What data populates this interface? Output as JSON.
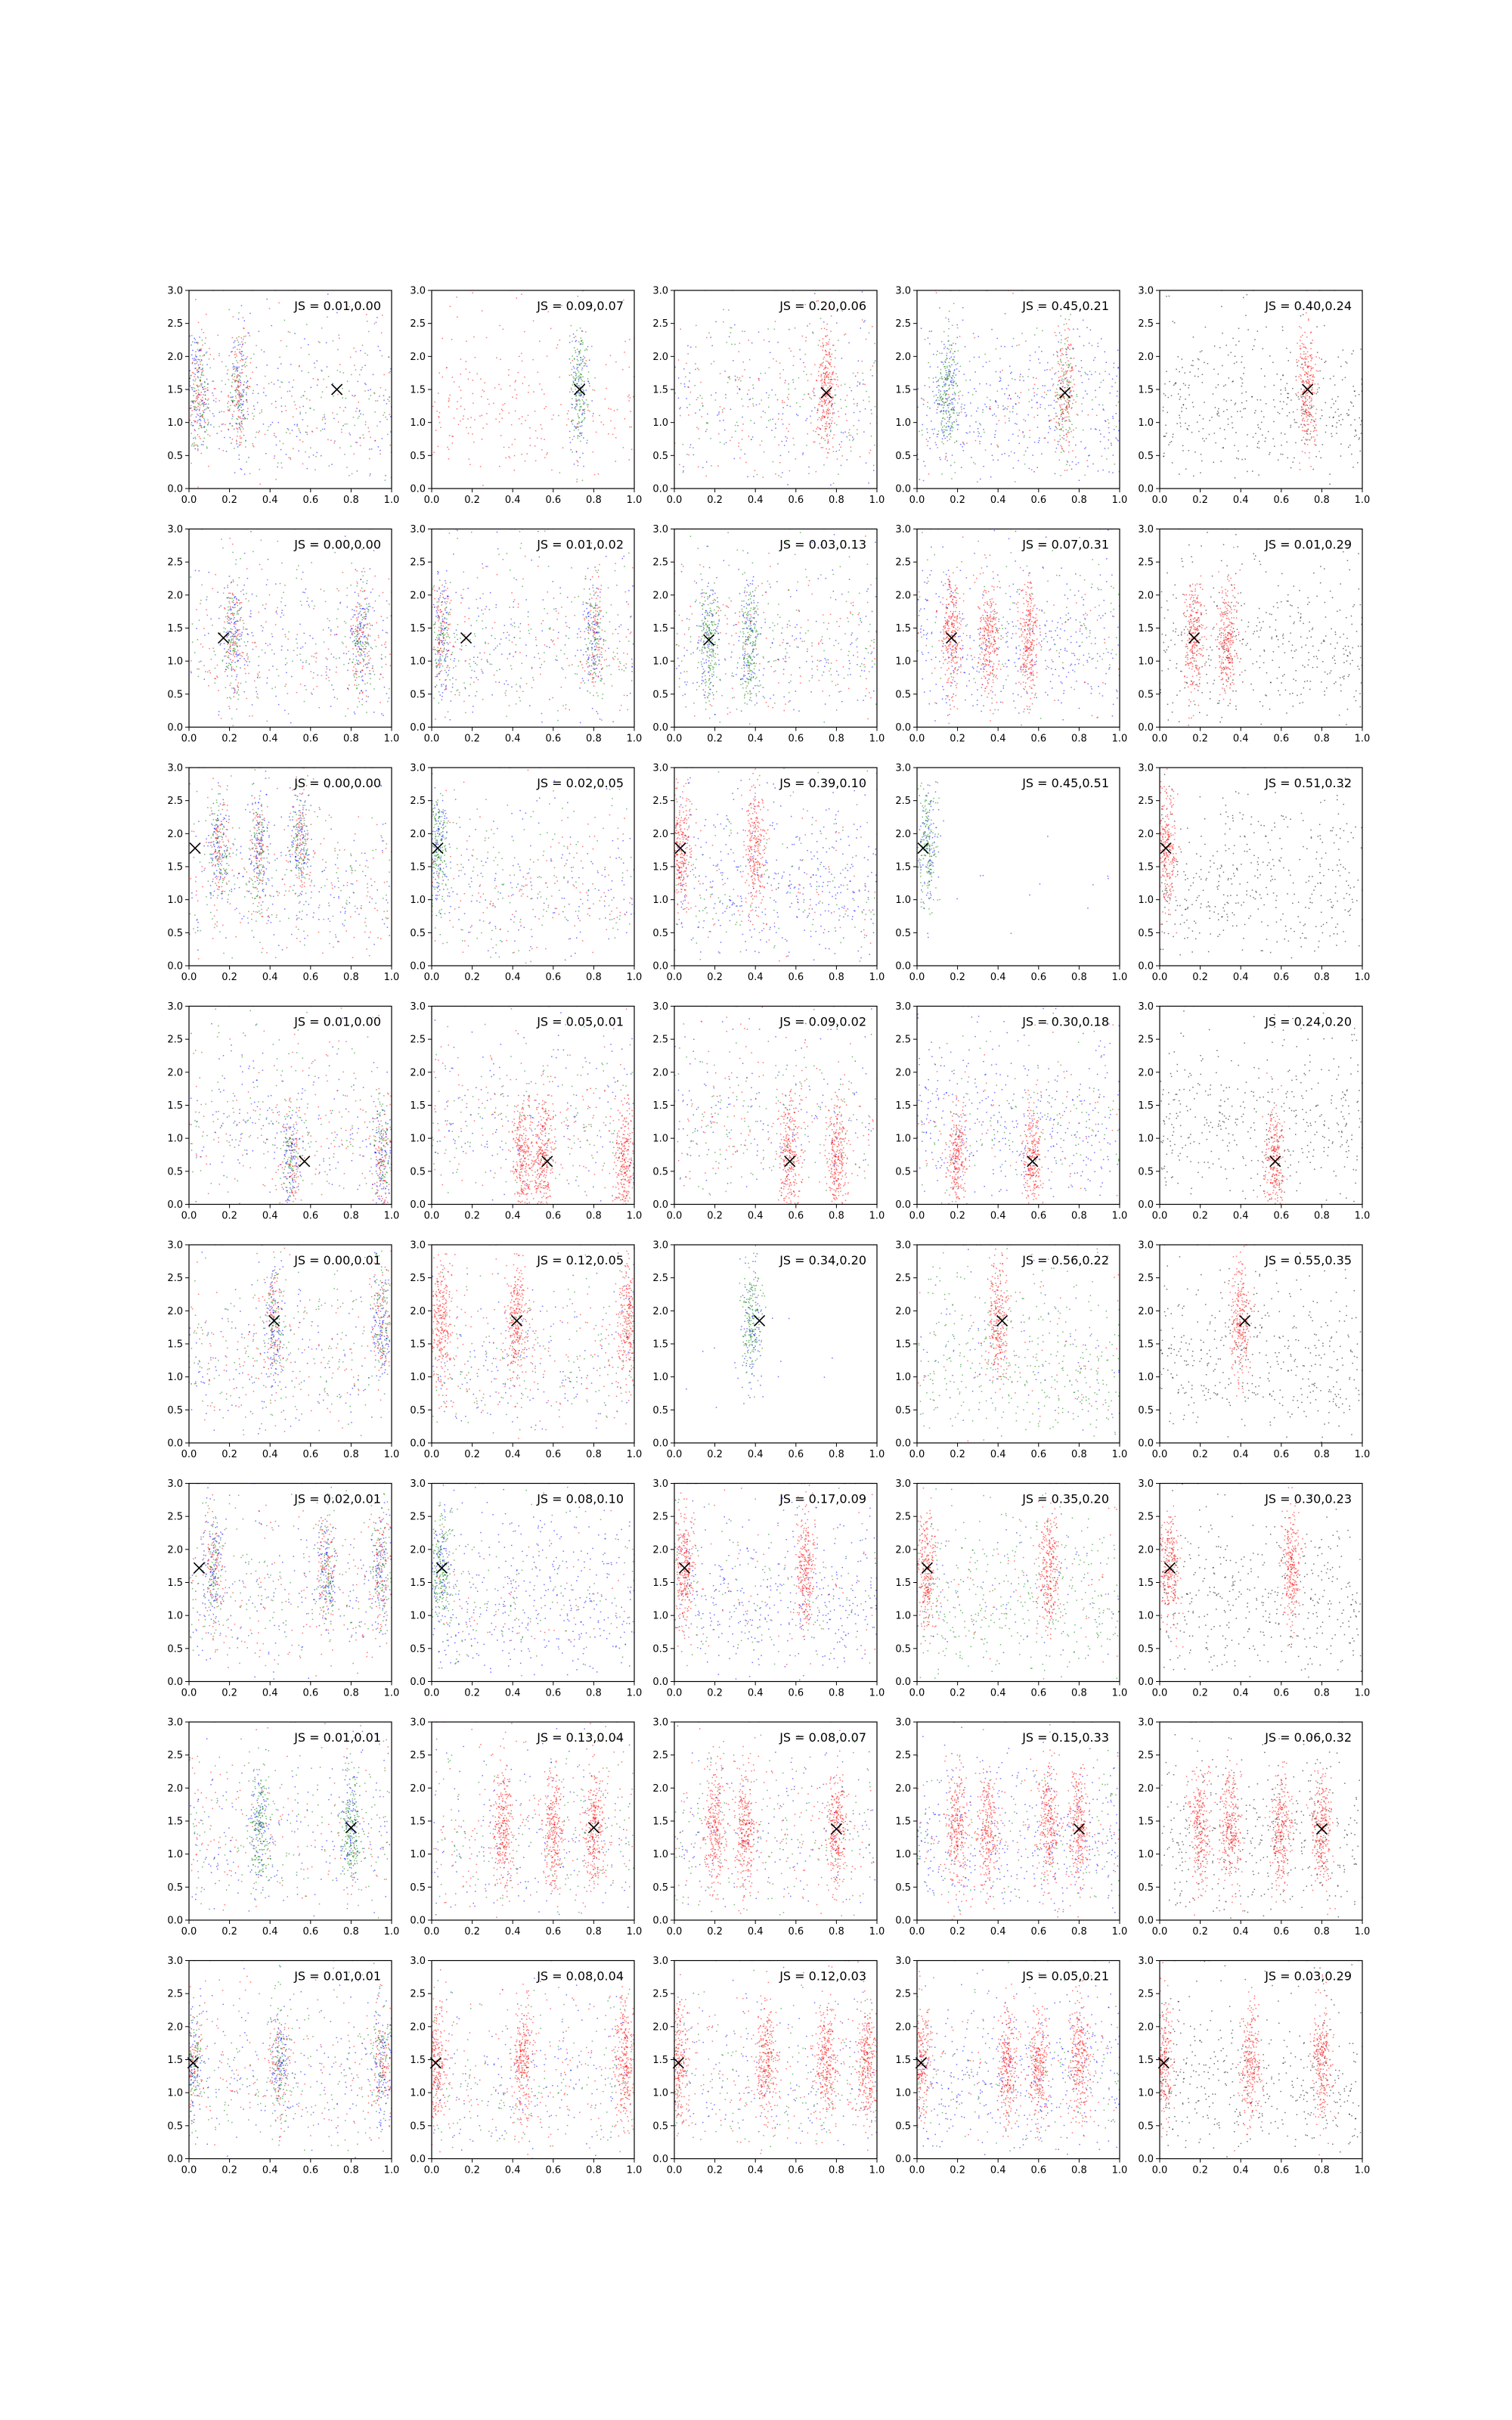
{
  "figure": {
    "rows": 8,
    "cols": 5,
    "point_colors": [
      "#0000ff",
      "#008000",
      "#ff0000",
      "#000000"
    ],
    "marker_color": "#000000",
    "marker_symbol": "x"
  },
  "chart_data": {
    "type": "scatter",
    "shared_axes": {
      "xlim": [
        0.0,
        1.0
      ],
      "ylim": [
        0.0,
        3.0
      ],
      "xticks": [
        "0.0",
        "0.2",
        "0.4",
        "0.6",
        "0.8",
        "1.0"
      ],
      "yticks": [
        "0.0",
        "0.5",
        "1.0",
        "1.5",
        "2.0",
        "2.5",
        "3.0"
      ],
      "grid": false
    },
    "panels": [
      {
        "row": 0,
        "col": 0,
        "label": "JS = 0.01,0.00",
        "marker": [
          0.73,
          1.5
        ],
        "clusters": [
          0.05,
          0.25
        ],
        "dominant": "mix",
        "bg": "mix"
      },
      {
        "row": 0,
        "col": 1,
        "label": "JS = 0.09,0.07",
        "marker": [
          0.73,
          1.5
        ],
        "clusters": [
          0.73
        ],
        "dominant": "green",
        "bg": "red"
      },
      {
        "row": 0,
        "col": 2,
        "label": "JS = 0.20,0.06",
        "marker": [
          0.75,
          1.45
        ],
        "clusters": [
          0.75
        ],
        "dominant": "red",
        "bg": "mix"
      },
      {
        "row": 0,
        "col": 3,
        "label": "JS = 0.45,0.21",
        "marker": [
          0.73,
          1.45
        ],
        "clusters": [
          0.15,
          0.73
        ],
        "dominant": "red+green",
        "bg": "blue"
      },
      {
        "row": 0,
        "col": 4,
        "label": "JS = 0.40,0.24",
        "marker": [
          0.73,
          1.5
        ],
        "clusters": [
          0.73
        ],
        "dominant": "red",
        "bg": "black"
      },
      {
        "row": 1,
        "col": 0,
        "label": "JS = 0.00,0.00",
        "marker": [
          0.17,
          1.35
        ],
        "clusters": [
          0.22,
          0.85
        ],
        "dominant": "mix",
        "bg": "mix"
      },
      {
        "row": 1,
        "col": 1,
        "label": "JS = 0.01,0.02",
        "marker": [
          0.17,
          1.35
        ],
        "clusters": [
          0.05,
          0.8
        ],
        "dominant": "mix",
        "bg": "mix"
      },
      {
        "row": 1,
        "col": 2,
        "label": "JS = 0.03,0.13",
        "marker": [
          0.17,
          1.32
        ],
        "clusters": [
          0.17,
          0.37
        ],
        "dominant": "green",
        "bg": "mix"
      },
      {
        "row": 1,
        "col": 3,
        "label": "JS = 0.07,0.31",
        "marker": [
          0.17,
          1.35
        ],
        "clusters": [
          0.17,
          0.35,
          0.55
        ],
        "dominant": "red",
        "bg": "blue"
      },
      {
        "row": 1,
        "col": 4,
        "label": "JS = 0.01,0.29",
        "marker": [
          0.17,
          1.35
        ],
        "clusters": [
          0.17,
          0.33
        ],
        "dominant": "red",
        "bg": "black"
      },
      {
        "row": 2,
        "col": 0,
        "label": "JS = 0.00,0.00",
        "marker": [
          0.03,
          1.78
        ],
        "clusters": [
          0.15,
          0.35,
          0.55
        ],
        "dominant": "mix",
        "bg": "mix"
      },
      {
        "row": 2,
        "col": 1,
        "label": "JS = 0.02,0.05",
        "marker": [
          0.03,
          1.78
        ],
        "clusters": [
          0.03
        ],
        "dominant": "green",
        "bg": "mix"
      },
      {
        "row": 2,
        "col": 2,
        "label": "JS = 0.39,0.10",
        "marker": [
          0.03,
          1.78
        ],
        "clusters": [
          0.03,
          0.4
        ],
        "dominant": "red",
        "bg": "blue"
      },
      {
        "row": 2,
        "col": 3,
        "label": "JS = 0.45,0.51",
        "marker": [
          0.03,
          1.78
        ],
        "clusters": [
          0.05
        ],
        "dominant": "green",
        "bg": "none"
      },
      {
        "row": 2,
        "col": 4,
        "label": "JS = 0.51,0.32",
        "marker": [
          0.03,
          1.78
        ],
        "clusters": [
          0.03
        ],
        "dominant": "red",
        "bg": "black"
      },
      {
        "row": 3,
        "col": 0,
        "label": "JS = 0.01,0.00",
        "marker": [
          0.57,
          0.65
        ],
        "clusters": [
          0.5,
          0.95
        ],
        "dominant": "mix",
        "bg": "mix"
      },
      {
        "row": 3,
        "col": 1,
        "label": "JS = 0.05,0.01",
        "marker": [
          0.57,
          0.65
        ],
        "clusters": [
          0.45,
          0.55,
          0.95
        ],
        "dominant": "red",
        "bg": "mix"
      },
      {
        "row": 3,
        "col": 2,
        "label": "JS = 0.09,0.02",
        "marker": [
          0.57,
          0.65
        ],
        "clusters": [
          0.57,
          0.8
        ],
        "dominant": "red",
        "bg": "mix"
      },
      {
        "row": 3,
        "col": 3,
        "label": "JS = 0.30,0.18",
        "marker": [
          0.57,
          0.65
        ],
        "clusters": [
          0.57,
          0.2
        ],
        "dominant": "red",
        "bg": "blue"
      },
      {
        "row": 3,
        "col": 4,
        "label": "JS = 0.24,0.20",
        "marker": [
          0.57,
          0.65
        ],
        "clusters": [
          0.57
        ],
        "dominant": "red",
        "bg": "black"
      },
      {
        "row": 4,
        "col": 0,
        "label": "JS = 0.00,0.01",
        "marker": [
          0.42,
          1.85
        ],
        "clusters": [
          0.42,
          0.95
        ],
        "dominant": "mix",
        "bg": "mix"
      },
      {
        "row": 4,
        "col": 1,
        "label": "JS = 0.12,0.05",
        "marker": [
          0.42,
          1.85
        ],
        "clusters": [
          0.05,
          0.42,
          0.97
        ],
        "dominant": "red",
        "bg": "mix"
      },
      {
        "row": 4,
        "col": 2,
        "label": "JS = 0.34,0.20",
        "marker": [
          0.42,
          1.85
        ],
        "clusters": [
          0.38
        ],
        "dominant": "green",
        "bg": "none"
      },
      {
        "row": 4,
        "col": 3,
        "label": "JS = 0.56,0.22",
        "marker": [
          0.42,
          1.85
        ],
        "clusters": [
          0.4
        ],
        "dominant": "red",
        "bg": "green"
      },
      {
        "row": 4,
        "col": 4,
        "label": "JS = 0.55,0.35",
        "marker": [
          0.42,
          1.85
        ],
        "clusters": [
          0.4
        ],
        "dominant": "red",
        "bg": "black"
      },
      {
        "row": 5,
        "col": 0,
        "label": "JS = 0.02,0.01",
        "marker": [
          0.05,
          1.72
        ],
        "clusters": [
          0.12,
          0.68,
          0.95
        ],
        "dominant": "mix",
        "bg": "mix"
      },
      {
        "row": 5,
        "col": 1,
        "label": "JS = 0.08,0.10",
        "marker": [
          0.05,
          1.72
        ],
        "clusters": [
          0.05
        ],
        "dominant": "green",
        "bg": "blue"
      },
      {
        "row": 5,
        "col": 2,
        "label": "JS = 0.17,0.09",
        "marker": [
          0.05,
          1.72
        ],
        "clusters": [
          0.05,
          0.65
        ],
        "dominant": "red",
        "bg": "blue"
      },
      {
        "row": 5,
        "col": 3,
        "label": "JS = 0.35,0.20",
        "marker": [
          0.05,
          1.72
        ],
        "clusters": [
          0.05,
          0.65
        ],
        "dominant": "red",
        "bg": "green"
      },
      {
        "row": 5,
        "col": 4,
        "label": "JS = 0.30,0.23",
        "marker": [
          0.05,
          1.72
        ],
        "clusters": [
          0.05,
          0.65
        ],
        "dominant": "red",
        "bg": "black"
      },
      {
        "row": 6,
        "col": 0,
        "label": "JS = 0.01,0.01",
        "marker": [
          0.8,
          1.4
        ],
        "clusters": [
          0.35,
          0.8
        ],
        "dominant": "green",
        "bg": "mix"
      },
      {
        "row": 6,
        "col": 1,
        "label": "JS = 0.13,0.04",
        "marker": [
          0.8,
          1.4
        ],
        "clusters": [
          0.35,
          0.6,
          0.8
        ],
        "dominant": "red",
        "bg": "mix"
      },
      {
        "row": 6,
        "col": 2,
        "label": "JS = 0.08,0.07",
        "marker": [
          0.8,
          1.38
        ],
        "clusters": [
          0.2,
          0.35,
          0.8
        ],
        "dominant": "red",
        "bg": "mix"
      },
      {
        "row": 6,
        "col": 3,
        "label": "JS = 0.15,0.33",
        "marker": [
          0.8,
          1.38
        ],
        "clusters": [
          0.2,
          0.35,
          0.65,
          0.8
        ],
        "dominant": "red",
        "bg": "blue"
      },
      {
        "row": 6,
        "col": 4,
        "label": "JS = 0.06,0.32",
        "marker": [
          0.8,
          1.38
        ],
        "clusters": [
          0.2,
          0.35,
          0.6,
          0.8
        ],
        "dominant": "red",
        "bg": "black"
      },
      {
        "row": 7,
        "col": 0,
        "label": "JS = 0.01,0.01",
        "marker": [
          0.02,
          1.45
        ],
        "clusters": [
          0.02,
          0.45,
          0.95
        ],
        "dominant": "mix",
        "bg": "mix"
      },
      {
        "row": 7,
        "col": 1,
        "label": "JS = 0.08,0.04",
        "marker": [
          0.02,
          1.45
        ],
        "clusters": [
          0.02,
          0.45,
          0.95
        ],
        "dominant": "red",
        "bg": "mix"
      },
      {
        "row": 7,
        "col": 2,
        "label": "JS = 0.12,0.03",
        "marker": [
          0.02,
          1.45
        ],
        "clusters": [
          0.02,
          0.45,
          0.75,
          0.95
        ],
        "dominant": "red",
        "bg": "mix"
      },
      {
        "row": 7,
        "col": 3,
        "label": "JS = 0.05,0.21",
        "marker": [
          0.02,
          1.45
        ],
        "clusters": [
          0.02,
          0.45,
          0.6,
          0.8
        ],
        "dominant": "red",
        "bg": "blue"
      },
      {
        "row": 7,
        "col": 4,
        "label": "JS = 0.03,0.29",
        "marker": [
          0.02,
          1.45
        ],
        "clusters": [
          0.02,
          0.45,
          0.8
        ],
        "dominant": "red",
        "bg": "black"
      }
    ]
  }
}
